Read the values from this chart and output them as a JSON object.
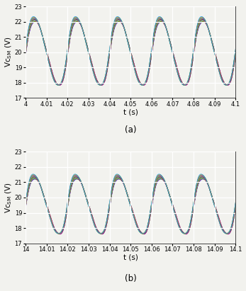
{
  "subplot_a": {
    "t_start": 4.0,
    "t_end": 4.1,
    "ylabel": "Vc$_\\mathregular{SM}$ (V)",
    "xlabel": "t (s)",
    "label": "(a)",
    "ylim": [
      17,
      23
    ],
    "yticks": [
      17,
      18,
      19,
      20,
      21,
      22,
      23
    ],
    "xticks": [
      4.0,
      4.01,
      4.02,
      4.03,
      4.04,
      4.05,
      4.06,
      4.07,
      4.08,
      4.09,
      4.1
    ],
    "xticklabels": [
      "4",
      "4.01",
      "4.02",
      "4.03",
      "4.04",
      "4.05",
      "4.06",
      "4.07",
      "4.08",
      "4.09",
      "4.1"
    ],
    "freq": 50,
    "v_mean": 20.0,
    "v_amp": 2.2,
    "n_lines": 20
  },
  "subplot_b": {
    "t_start": 14.0,
    "t_end": 14.1,
    "ylabel": "Vc$_\\mathregular{SM}$ (V)",
    "xlabel": "t (s)",
    "label": "(b)",
    "ylim": [
      17,
      23
    ],
    "yticks": [
      17,
      18,
      19,
      20,
      21,
      22,
      23
    ],
    "xticks": [
      14.0,
      14.01,
      14.02,
      14.03,
      14.04,
      14.05,
      14.06,
      14.07,
      14.08,
      14.09,
      14.1
    ],
    "xticklabels": [
      "14",
      "14.01",
      "14.02",
      "14.03",
      "14.04",
      "14.05",
      "14.06",
      "14.07",
      "14.08",
      "14.09",
      "14.1"
    ],
    "freq": 50,
    "v_mean": 19.5,
    "v_amp": 1.9,
    "n_lines": 20
  },
  "colors": [
    "#0000ff",
    "#ff0000",
    "#00bb00",
    "#bb00bb",
    "#00bbbb",
    "#ff8800",
    "#aaaa00",
    "#ff00ff",
    "#00cccc",
    "#006600",
    "#cc0000",
    "#000099",
    "#ff6666",
    "#66cc66",
    "#6666ff",
    "#ffaa00",
    "#00dd88",
    "#ff0088",
    "#88dd00",
    "#0088ff"
  ],
  "background_color": "#f2f2ee",
  "grid_color": "#ffffff",
  "tick_fontsize": 6,
  "label_fontsize": 7.5,
  "caption_fontsize": 8.5,
  "linewidth": 0.5
}
